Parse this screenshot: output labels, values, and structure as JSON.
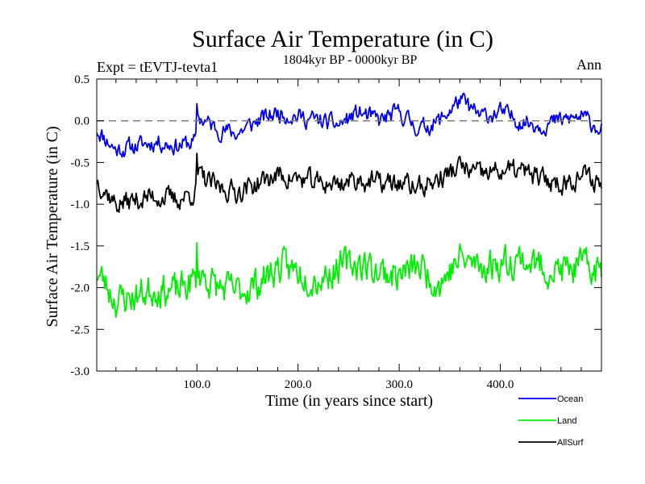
{
  "chart_data": {
    "type": "line",
    "title": "Surface Air Temperature (in C)",
    "subtitle": "1804kyr BP - 0000kyr BP",
    "experiment_label": "Expt = tEVTJ-tevta1",
    "season_label": "Ann",
    "xlabel": "Time (in years since start)",
    "ylabel": "Surface Air Temperature (in C)",
    "xlim": [
      1,
      500
    ],
    "ylim": [
      -3.0,
      0.5
    ],
    "x_ticks": [
      100,
      200,
      300,
      400
    ],
    "x_tick_labels": [
      "100.0",
      "200.0",
      "300.0",
      "400.0"
    ],
    "y_ticks": [
      -3.0,
      -2.5,
      -2.0,
      -1.5,
      -1.0,
      -0.5,
      0.0,
      0.5
    ],
    "y_tick_labels": [
      "-3.0",
      "-2.5",
      "-2.0",
      "-1.5",
      "-1.0",
      "-0.5",
      "0.0",
      "0.5"
    ],
    "reference_line": 0.0,
    "legend_position": "bottom-right",
    "series": [
      {
        "name": "Ocean",
        "color": "#0000ee",
        "x": [
          1,
          20,
          40,
          60,
          80,
          99,
          100,
          101,
          120,
          140,
          160,
          180,
          200,
          220,
          240,
          260,
          280,
          300,
          320,
          340,
          360,
          380,
          400,
          420,
          440,
          460,
          480,
          500
        ],
        "values": [
          -0.1,
          -0.35,
          -0.3,
          -0.25,
          -0.3,
          -0.25,
          0.2,
          0.05,
          -0.1,
          -0.15,
          0.0,
          0.1,
          0.05,
          0.0,
          -0.05,
          0.1,
          0.0,
          0.1,
          -0.1,
          0.0,
          0.25,
          0.05,
          0.1,
          0.0,
          -0.05,
          0.0,
          0.05,
          -0.1
        ],
        "noise": 0.09,
        "seed": 11
      },
      {
        "name": "Land",
        "color": "#00ee00",
        "x": [
          1,
          20,
          40,
          60,
          80,
          99,
          100,
          101,
          120,
          140,
          160,
          180,
          200,
          220,
          240,
          260,
          280,
          300,
          320,
          340,
          360,
          380,
          400,
          420,
          440,
          460,
          480,
          500
        ],
        "values": [
          -1.8,
          -2.15,
          -2.1,
          -2.0,
          -2.05,
          -1.9,
          -1.55,
          -1.8,
          -2.0,
          -2.05,
          -1.95,
          -1.75,
          -1.8,
          -1.9,
          -1.75,
          -1.7,
          -1.8,
          -1.85,
          -1.75,
          -1.95,
          -1.65,
          -1.75,
          -1.7,
          -1.65,
          -1.75,
          -1.8,
          -1.75,
          -1.8
        ],
        "noise": 0.17,
        "seed": 23
      },
      {
        "name": "AllSurf",
        "color": "#000000",
        "x": [
          1,
          20,
          40,
          60,
          80,
          99,
          100,
          101,
          120,
          140,
          160,
          180,
          200,
          220,
          240,
          260,
          280,
          300,
          320,
          340,
          360,
          380,
          400,
          420,
          440,
          460,
          480,
          500
        ],
        "values": [
          -0.7,
          -1.0,
          -0.95,
          -0.9,
          -0.95,
          -0.85,
          -0.45,
          -0.65,
          -0.8,
          -0.85,
          -0.75,
          -0.65,
          -0.7,
          -0.75,
          -0.75,
          -0.7,
          -0.75,
          -0.75,
          -0.8,
          -0.7,
          -0.55,
          -0.65,
          -0.6,
          -0.6,
          -0.7,
          -0.75,
          -0.65,
          -0.75
        ],
        "noise": 0.11,
        "seed": 37
      }
    ]
  }
}
